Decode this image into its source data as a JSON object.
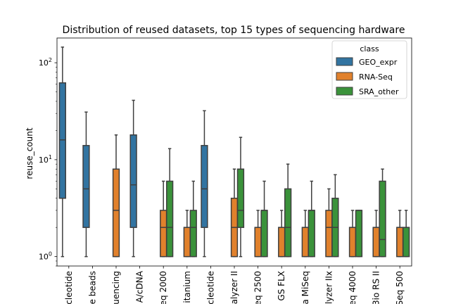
{
  "chart_data": {
    "type": "boxplot",
    "title": "Distribution of reused datasets, top 15 types of sequencing hardware",
    "xlabel": "",
    "ylabel": "reuse_count",
    "yscale": "log",
    "ylim": [
      0.8,
      180
    ],
    "yticks": [
      {
        "value": 1,
        "base": "10",
        "exp": "0"
      },
      {
        "value": 10,
        "base": "10",
        "exp": "1"
      },
      {
        "value": 100,
        "base": "10",
        "exp": "2"
      }
    ],
    "categories": [
      "cleotide",
      "e beads",
      "uencing",
      "A/cDNA",
      "eq 2000",
      "itanium",
      "cleotide",
      "alyzer II",
      "eq 2500",
      "GS FLX",
      "a MiSeq",
      "lyzer IIx",
      "eq 4000",
      "3io RS II",
      "Seq 500"
    ],
    "legend": {
      "title": "class",
      "position": "top-right",
      "entries": [
        {
          "name": "GEO_expr",
          "color": "#3274a1"
        },
        {
          "name": "RNA-Seq",
          "color": "#e1812c"
        },
        {
          "name": "SRA_other",
          "color": "#3a923a"
        }
      ]
    },
    "series": [
      {
        "name": "GEO_expr",
        "color": "#3274a1",
        "boxes": [
          {
            "category": 0,
            "whislo": 1,
            "q1": 4,
            "med": 16,
            "q3": 62,
            "whishi": 145
          },
          {
            "category": 1,
            "whislo": 1,
            "q1": 2,
            "med": 5,
            "q3": 14,
            "whishi": 31
          },
          {
            "category": 3,
            "whislo": 1,
            "q1": 2,
            "med": 5.5,
            "q3": 18,
            "whishi": 41
          },
          {
            "category": 6,
            "whislo": 1,
            "q1": 2,
            "med": 5,
            "q3": 14,
            "whishi": 32
          }
        ]
      },
      {
        "name": "RNA-Seq",
        "color": "#e1812c",
        "boxes": [
          {
            "category": 2,
            "whislo": 1,
            "q1": 1,
            "med": 3,
            "q3": 8,
            "whishi": 18
          },
          {
            "category": 4,
            "whislo": 1,
            "q1": 1,
            "med": 2,
            "q3": 3,
            "whishi": 6
          },
          {
            "category": 5,
            "whislo": 1,
            "q1": 1,
            "med": 2,
            "q3": 2,
            "whishi": 3
          },
          {
            "category": 7,
            "whislo": 1,
            "q1": 1,
            "med": 2,
            "q3": 4,
            "whishi": 8
          },
          {
            "category": 8,
            "whislo": 1,
            "q1": 1,
            "med": 2,
            "q3": 2,
            "whishi": 3
          },
          {
            "category": 9,
            "whislo": 1,
            "q1": 1,
            "med": 2,
            "q3": 2,
            "whishi": 3
          },
          {
            "category": 10,
            "whislo": 1,
            "q1": 1,
            "med": 2,
            "q3": 2,
            "whishi": 3
          },
          {
            "category": 11,
            "whislo": 1,
            "q1": 1,
            "med": 2,
            "q3": 3,
            "whishi": 5
          },
          {
            "category": 12,
            "whislo": 1,
            "q1": 1,
            "med": 2,
            "q3": 2,
            "whishi": 3
          },
          {
            "category": 13,
            "whislo": 1,
            "q1": 1,
            "med": 2,
            "q3": 2,
            "whishi": 3
          },
          {
            "category": 14,
            "whislo": 1,
            "q1": 1,
            "med": 2,
            "q3": 2,
            "whishi": 3
          }
        ]
      },
      {
        "name": "SRA_other",
        "color": "#3a923a",
        "boxes": [
          {
            "category": 4,
            "whislo": 1,
            "q1": 1,
            "med": 2,
            "q3": 6,
            "whishi": 13
          },
          {
            "category": 5,
            "whislo": 1,
            "q1": 1,
            "med": 2,
            "q3": 3,
            "whishi": 6
          },
          {
            "category": 7,
            "whislo": 1,
            "q1": 2,
            "med": 3,
            "q3": 8,
            "whishi": 17
          },
          {
            "category": 8,
            "whislo": 1,
            "q1": 1,
            "med": 3,
            "q3": 3,
            "whishi": 6
          },
          {
            "category": 9,
            "whislo": 1,
            "q1": 1,
            "med": 2,
            "q3": 5,
            "whishi": 9
          },
          {
            "category": 10,
            "whislo": 1,
            "q1": 1,
            "med": 3,
            "q3": 3,
            "whishi": 6
          },
          {
            "category": 11,
            "whislo": 1,
            "q1": 1,
            "med": 2,
            "q3": 4,
            "whishi": 7
          },
          {
            "category": 12,
            "whislo": 1,
            "q1": 1,
            "med": 3,
            "q3": 3,
            "whishi": 3
          },
          {
            "category": 13,
            "whislo": 1,
            "q1": 1,
            "med": 1.5,
            "q3": 6,
            "whishi": 8
          },
          {
            "category": 14,
            "whislo": 1,
            "q1": 1,
            "med": 2,
            "q3": 2,
            "whishi": 3
          }
        ]
      }
    ]
  }
}
